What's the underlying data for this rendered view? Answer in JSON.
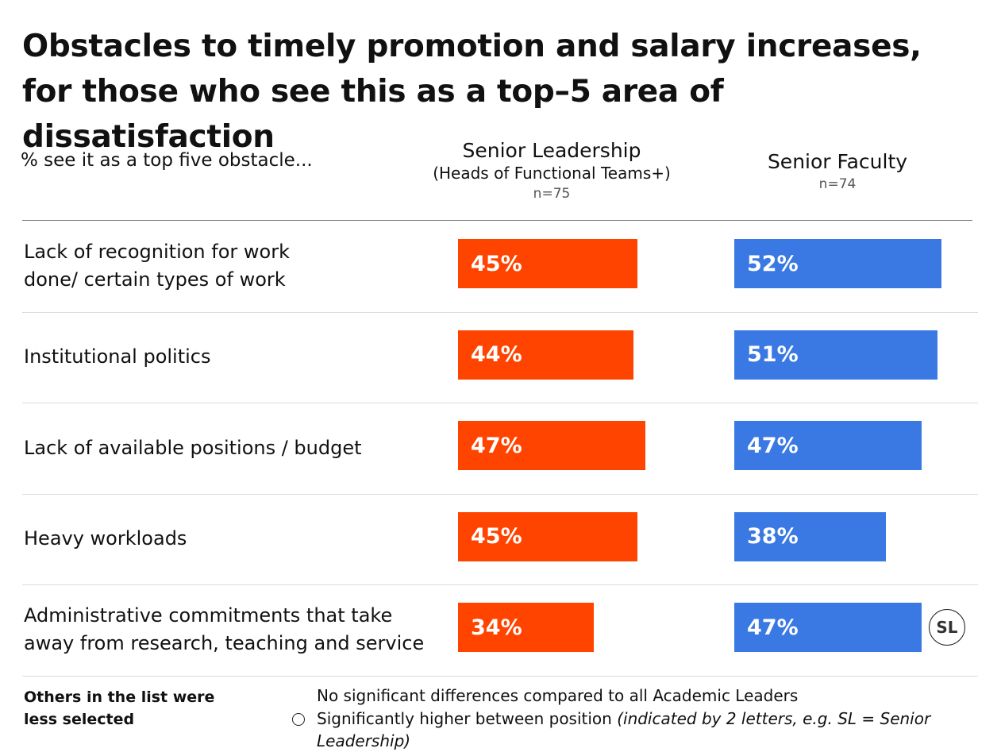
{
  "title": "Obstacles to timely promotion and salary increases, for those who see this as a top–5 area of dissatisfaction",
  "subtitle": "% see it as a top five obstacle...",
  "columns": {
    "senior_leadership": {
      "name": "Senior Leadership",
      "detail": "(Heads of Functional Teams+)",
      "n": "n=75"
    },
    "senior_faculty": {
      "name": "Senior Faculty",
      "n": "n=74"
    }
  },
  "chart_data": {
    "type": "bar",
    "unit": "%",
    "categories": [
      "Lack of recognition for work\ndone/ certain types of work",
      "Institutional politics",
      "Lack of available positions / budget",
      "Heavy workloads",
      "Administrative commitments that take\naway from research, teaching and service"
    ],
    "series": [
      {
        "name": "Senior Leadership",
        "color": "#ff4400",
        "values": [
          45,
          44,
          47,
          45,
          34
        ],
        "labels": [
          "45%",
          "44%",
          "47%",
          "45%",
          "34%"
        ]
      },
      {
        "name": "Senior Faculty",
        "color": "#3a79e4",
        "values": [
          52,
          51,
          47,
          38,
          47
        ],
        "labels": [
          "52%",
          "51%",
          "47%",
          "38%",
          "47%"
        ]
      }
    ],
    "significance": [
      {
        "category_index": 4,
        "series": "Senior Faculty",
        "label": "SL"
      }
    ]
  },
  "footer": {
    "others": "Others in the list were less selected",
    "legend_none": "No significant differences compared to all Academic Leaders",
    "legend_sig_text": "Significantly higher between position ",
    "legend_sig_note": "(indicated by 2 letters, e.g. SL = Senior Leadership)"
  }
}
